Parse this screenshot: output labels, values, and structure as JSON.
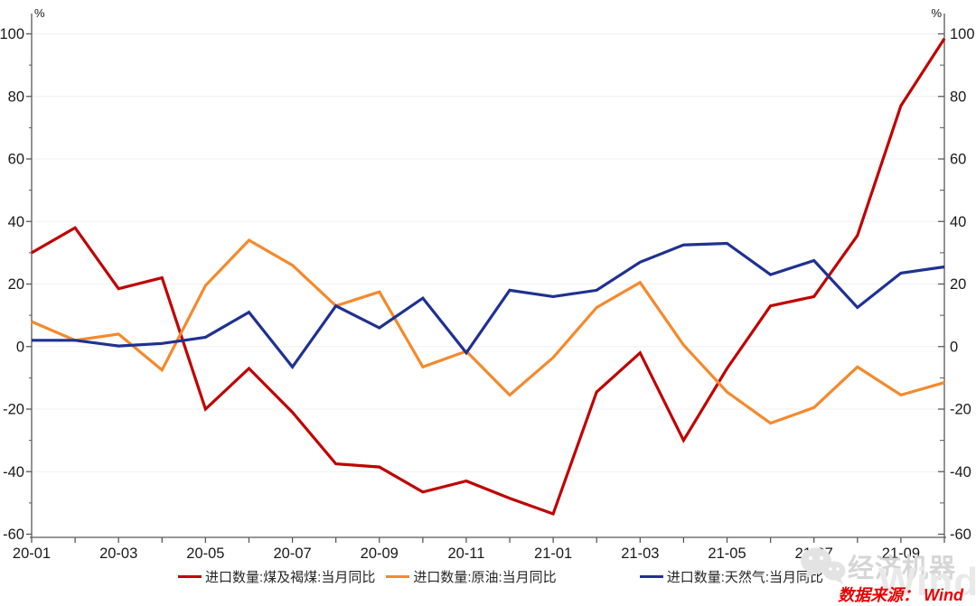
{
  "chart_data": {
    "type": "line",
    "title": "",
    "unit_left": "%",
    "unit_right": "%",
    "ylim": [
      -60,
      100
    ],
    "ytick_step": 20,
    "ytick_minor_step": 10,
    "grid": "horizontal",
    "grid_color": "#f0f0f0",
    "axis_color": "#595959",
    "legend_position": "bottom",
    "x_label_every": 2,
    "x_categories": [
      "20-01",
      "20-02",
      "20-03",
      "20-04",
      "20-05",
      "20-06",
      "20-07",
      "20-08",
      "20-09",
      "20-10",
      "20-11",
      "20-12",
      "21-01",
      "21-02",
      "21-03",
      "21-04",
      "21-05",
      "21-06",
      "21-07",
      "21-08",
      "21-09",
      "21-10"
    ],
    "series": [
      {
        "name": "进口数量:煤及褐煤:当月同比",
        "color": "#c00000",
        "values": [
          30,
          38,
          18.5,
          22,
          -20,
          -7,
          -21,
          -37.5,
          -38.5,
          -46.5,
          -43,
          -48.5,
          -53.5,
          -14.5,
          -2,
          -30,
          -7,
          13,
          16,
          35.5,
          77,
          98.5
        ]
      },
      {
        "name": "进口数量:原油:当月同比",
        "color": "#f5892c",
        "values": [
          8,
          2,
          4,
          -7.5,
          19.5,
          34,
          26,
          13,
          17.5,
          -6.5,
          -1.5,
          -15.5,
          -3.5,
          12.5,
          20.5,
          0.5,
          -14.5,
          -24.5,
          -19.5,
          -6.5,
          -15.5,
          -11.5
        ]
      },
      {
        "name": "进口数量:天然气:当月同比",
        "color": "#1f3191",
        "values": [
          2,
          2,
          0.2,
          1,
          3,
          11,
          -6.5,
          13,
          6,
          15.5,
          -2,
          18,
          16,
          18,
          27,
          32.5,
          33,
          23,
          27.5,
          12.5,
          23.5,
          25.5
        ]
      }
    ]
  },
  "watermark": {
    "brand_name": "经济机器",
    "ghost_text": "Wind",
    "source_note": "数据来源： Wind"
  }
}
